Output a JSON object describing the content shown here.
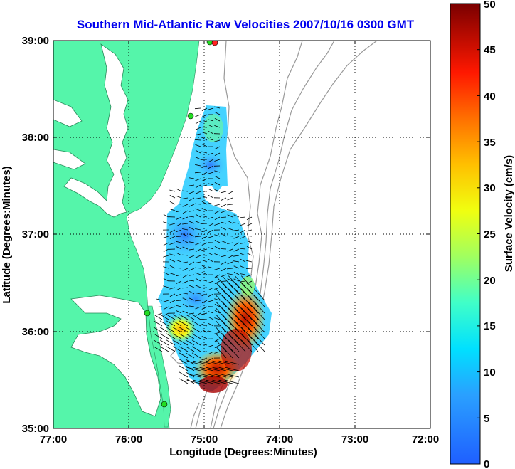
{
  "chart_data": {
    "type": "heatmap",
    "title": "Southern Mid-Atlantic Raw Velocities 2007/10/16 0300 GMT",
    "xlabel": "Longitude (Degrees:Minutes)",
    "ylabel": "Latitude (Degrees:Minutes)",
    "colorbar_label": "Surface Velocity (cm/s)",
    "x_ticks": [
      "77:00",
      "76:00",
      "75:00",
      "74:00",
      "73:00",
      "72:00"
    ],
    "y_ticks": [
      "39:00",
      "38:00",
      "37:00",
      "36:00",
      "35:00"
    ],
    "colorbar_ticks": [
      "50",
      "45",
      "40",
      "35",
      "30",
      "25",
      "20",
      "15",
      "10",
      "5",
      "0"
    ],
    "xlim": [
      -77,
      -72
    ],
    "ylim": [
      35,
      39
    ],
    "clim": [
      0,
      50
    ],
    "grid": true,
    "colors": {
      "land": "#55f5aa",
      "title": "#0000ee",
      "bathymetry": "#999999",
      "station": "#22dd22",
      "station_alt": "#ff2222"
    }
  }
}
